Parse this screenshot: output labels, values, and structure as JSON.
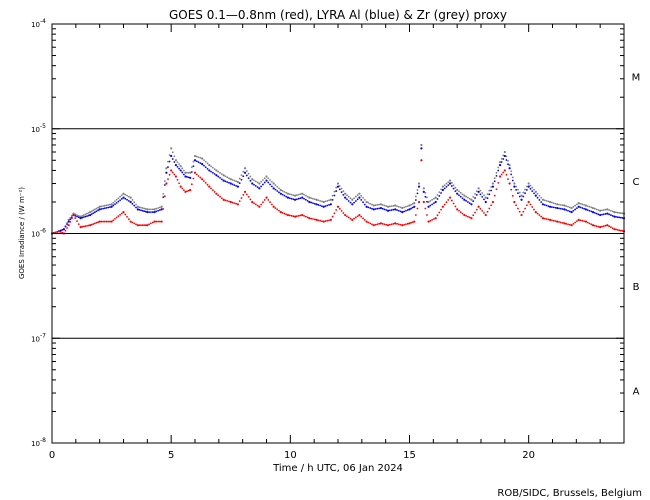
{
  "chart_data": {
    "type": "scatter",
    "title": "GOES 0.1—0.8nm (red), LYRA Al (blue) & Zr (grey) proxy",
    "xlabel": "Time / h UTC, 06 Jan 2024",
    "ylabel": "GOES Irradiance / (W m⁻²)",
    "y_scale": "log",
    "xlim": [
      0,
      24
    ],
    "ylim": [
      1e-08,
      0.0001
    ],
    "grid": "horizontal lines at class boundaries",
    "legend": "none",
    "x_ticks": [
      {
        "value": 0,
        "label": "0"
      },
      {
        "value": 5,
        "label": "5"
      },
      {
        "value": 10,
        "label": "10"
      },
      {
        "value": 15,
        "label": "15"
      },
      {
        "value": 20,
        "label": "20"
      }
    ],
    "y_ticks": [
      {
        "exp": -8,
        "base": "10",
        "sup": "-8"
      },
      {
        "exp": -7,
        "base": "10",
        "sup": "-7"
      },
      {
        "exp": -6,
        "base": "10",
        "sup": "-6"
      },
      {
        "exp": -5,
        "base": "10",
        "sup": "-5"
      },
      {
        "exp": -4,
        "base": "10",
        "sup": "-4"
      }
    ],
    "class_lines": [
      1e-07,
      1e-06,
      1e-05
    ],
    "class_labels": [
      {
        "label": "A",
        "center_exp": -7.5
      },
      {
        "label": "B",
        "center_exp": -6.5
      },
      {
        "label": "C",
        "center_exp": -5.5
      },
      {
        "label": "M",
        "center_exp": -4.5
      }
    ],
    "series": [
      {
        "color": "#ff0000",
        "x": [
          0,
          0.3,
          0.5,
          0.7,
          0.9,
          1.2,
          1.6,
          2.0,
          2.5,
          3.0,
          3.3,
          3.6,
          4.0,
          4.3,
          4.6,
          4.8,
          5.0,
          5.2,
          5.4,
          5.6,
          5.8,
          6.0,
          6.3,
          6.6,
          6.9,
          7.2,
          7.5,
          7.8,
          8.1,
          8.4,
          8.7,
          9.0,
          9.3,
          9.6,
          9.9,
          10.2,
          10.5,
          10.8,
          11.1,
          11.4,
          11.7,
          12.0,
          12.3,
          12.6,
          12.9,
          13.2,
          13.5,
          13.8,
          14.1,
          14.4,
          14.7,
          15.0,
          15.2,
          15.4,
          15.5,
          15.6,
          15.8,
          16.1,
          16.4,
          16.7,
          17.0,
          17.3,
          17.6,
          17.9,
          18.2,
          18.5,
          18.8,
          19.0,
          19.2,
          19.4,
          19.7,
          20.0,
          20.3,
          20.6,
          20.9,
          21.2,
          21.5,
          21.8,
          22.1,
          22.4,
          22.7,
          23.0,
          23.3,
          23.6,
          24.0
        ],
        "y": [
          1e-06,
          1.05e-06,
          1e-06,
          1.2e-06,
          1.5e-06,
          1.15e-06,
          1.2e-06,
          1.3e-06,
          1.3e-06,
          1.6e-06,
          1.3e-06,
          1.2e-06,
          1.2e-06,
          1.3e-06,
          1.3e-06,
          3e-06,
          4e-06,
          3.5e-06,
          2.8e-06,
          2.5e-06,
          2.6e-06,
          3.8e-06,
          3.3e-06,
          2.8e-06,
          2.4e-06,
          2.1e-06,
          2e-06,
          1.9e-06,
          2.5e-06,
          2e-06,
          1.8e-06,
          2.2e-06,
          1.8e-06,
          1.6e-06,
          1.5e-06,
          1.45e-06,
          1.5e-06,
          1.4e-06,
          1.35e-06,
          1.3e-06,
          1.35e-06,
          1.8e-06,
          1.5e-06,
          1.35e-06,
          1.5e-06,
          1.3e-06,
          1.2e-06,
          1.25e-06,
          1.2e-06,
          1.25e-06,
          1.2e-06,
          1.25e-06,
          1.3e-06,
          2e-06,
          5e-06,
          2e-06,
          1.3e-06,
          1.4e-06,
          1.8e-06,
          2.2e-06,
          1.7e-06,
          1.5e-06,
          1.4e-06,
          1.8e-06,
          1.5e-06,
          2e-06,
          3.5e-06,
          4e-06,
          3e-06,
          2e-06,
          1.5e-06,
          2e-06,
          1.6e-06,
          1.4e-06,
          1.35e-06,
          1.3e-06,
          1.25e-06,
          1.2e-06,
          1.35e-06,
          1.3e-06,
          1.2e-06,
          1.15e-06,
          1.2e-06,
          1.1e-06,
          1.05e-06
        ]
      },
      {
        "color": "#0000ff",
        "x": [
          0,
          0.3,
          0.5,
          0.7,
          0.9,
          1.2,
          1.6,
          2.0,
          2.5,
          3.0,
          3.3,
          3.6,
          4.0,
          4.3,
          4.6,
          4.8,
          5.0,
          5.2,
          5.4,
          5.6,
          5.8,
          6.0,
          6.3,
          6.6,
          6.9,
          7.2,
          7.5,
          7.8,
          8.1,
          8.4,
          8.7,
          9.0,
          9.3,
          9.6,
          9.9,
          10.2,
          10.5,
          10.8,
          11.1,
          11.4,
          11.7,
          12.0,
          12.3,
          12.6,
          12.9,
          13.2,
          13.5,
          13.8,
          14.1,
          14.4,
          14.7,
          15.0,
          15.2,
          15.4,
          15.5,
          15.6,
          15.8,
          16.1,
          16.4,
          16.7,
          17.0,
          17.3,
          17.6,
          17.9,
          18.2,
          18.5,
          18.8,
          19.0,
          19.2,
          19.4,
          19.7,
          20.0,
          20.3,
          20.6,
          20.9,
          21.2,
          21.5,
          21.8,
          22.1,
          22.4,
          22.7,
          23.0,
          23.3,
          23.6,
          24.0
        ],
        "y": [
          1e-06,
          1.05e-06,
          1.1e-06,
          1.3e-06,
          1.5e-06,
          1.4e-06,
          1.5e-06,
          1.7e-06,
          1.8e-06,
          2.2e-06,
          2e-06,
          1.7e-06,
          1.6e-06,
          1.6e-06,
          1.7e-06,
          3.8e-06,
          5.5e-06,
          4.5e-06,
          4e-06,
          3.5e-06,
          3.4e-06,
          5e-06,
          4.6e-06,
          4e-06,
          3.6e-06,
          3.2e-06,
          3e-06,
          2.8e-06,
          3.8e-06,
          3e-06,
          2.7e-06,
          3.2e-06,
          2.7e-06,
          2.4e-06,
          2.2e-06,
          2.1e-06,
          2.2e-06,
          2e-06,
          1.9e-06,
          1.8e-06,
          1.9e-06,
          2.8e-06,
          2.2e-06,
          1.9e-06,
          2.2e-06,
          1.8e-06,
          1.7e-06,
          1.75e-06,
          1.65e-06,
          1.7e-06,
          1.6e-06,
          1.7e-06,
          1.8e-06,
          2.8e-06,
          6.5e-06,
          2.5e-06,
          1.8e-06,
          2e-06,
          2.6e-06,
          3e-06,
          2.4e-06,
          2.1e-06,
          1.9e-06,
          2.5e-06,
          2e-06,
          2.8e-06,
          4.5e-06,
          5.5e-06,
          4.2e-06,
          2.8e-06,
          2.1e-06,
          2.8e-06,
          2.3e-06,
          1.9e-06,
          1.8e-06,
          1.75e-06,
          1.7e-06,
          1.6e-06,
          1.8e-06,
          1.7e-06,
          1.6e-06,
          1.5e-06,
          1.55e-06,
          1.45e-06,
          1.4e-06
        ]
      },
      {
        "color": "#808080",
        "x": [
          0,
          0.3,
          0.5,
          0.7,
          0.9,
          1.2,
          1.6,
          2.0,
          2.5,
          3.0,
          3.3,
          3.6,
          4.0,
          4.3,
          4.6,
          4.8,
          5.0,
          5.2,
          5.4,
          5.6,
          5.8,
          6.0,
          6.3,
          6.6,
          6.9,
          7.2,
          7.5,
          7.8,
          8.1,
          8.4,
          8.7,
          9.0,
          9.3,
          9.6,
          9.9,
          10.2,
          10.5,
          10.8,
          11.1,
          11.4,
          11.7,
          12.0,
          12.3,
          12.6,
          12.9,
          13.2,
          13.5,
          13.8,
          14.1,
          14.4,
          14.7,
          15.0,
          15.2,
          15.4,
          15.5,
          15.6,
          15.8,
          16.1,
          16.4,
          16.7,
          17.0,
          17.3,
          17.6,
          17.9,
          18.2,
          18.5,
          18.8,
          19.0,
          19.2,
          19.4,
          19.7,
          20.0,
          20.3,
          20.6,
          20.9,
          21.2,
          21.5,
          21.8,
          22.1,
          22.4,
          22.7,
          23.0,
          23.3,
          23.6,
          24.0
        ],
        "y": [
          1e-06,
          1.05e-06,
          1.1e-06,
          1.35e-06,
          1.55e-06,
          1.45e-06,
          1.6e-06,
          1.8e-06,
          1.9e-06,
          2.4e-06,
          2.2e-06,
          1.8e-06,
          1.7e-06,
          1.7e-06,
          1.8e-06,
          4.2e-06,
          6.5e-06,
          5e-06,
          4.4e-06,
          3.8e-06,
          3.8e-06,
          5.5e-06,
          5.2e-06,
          4.5e-06,
          4e-06,
          3.6e-06,
          3.3e-06,
          3.1e-06,
          4.2e-06,
          3.3e-06,
          3e-06,
          3.5e-06,
          3e-06,
          2.6e-06,
          2.4e-06,
          2.3e-06,
          2.4e-06,
          2.2e-06,
          2.1e-06,
          2e-06,
          2.1e-06,
          3e-06,
          2.4e-06,
          2.1e-06,
          2.4e-06,
          2e-06,
          1.85e-06,
          1.9e-06,
          1.8e-06,
          1.85e-06,
          1.75e-06,
          1.85e-06,
          1.95e-06,
          3e-06,
          7e-06,
          2.7e-06,
          2e-06,
          2.2e-06,
          2.8e-06,
          3.2e-06,
          2.6e-06,
          2.3e-06,
          2.1e-06,
          2.7e-06,
          2.2e-06,
          3e-06,
          4.8e-06,
          6e-06,
          4.5e-06,
          3e-06,
          2.3e-06,
          3e-06,
          2.5e-06,
          2.1e-06,
          2e-06,
          1.9e-06,
          1.85e-06,
          1.75e-06,
          1.95e-06,
          1.85e-06,
          1.75e-06,
          1.65e-06,
          1.7e-06,
          1.6e-06,
          1.55e-06
        ]
      }
    ]
  },
  "footer": {
    "credit": "ROB/SIDC, Brussels, Belgium"
  }
}
